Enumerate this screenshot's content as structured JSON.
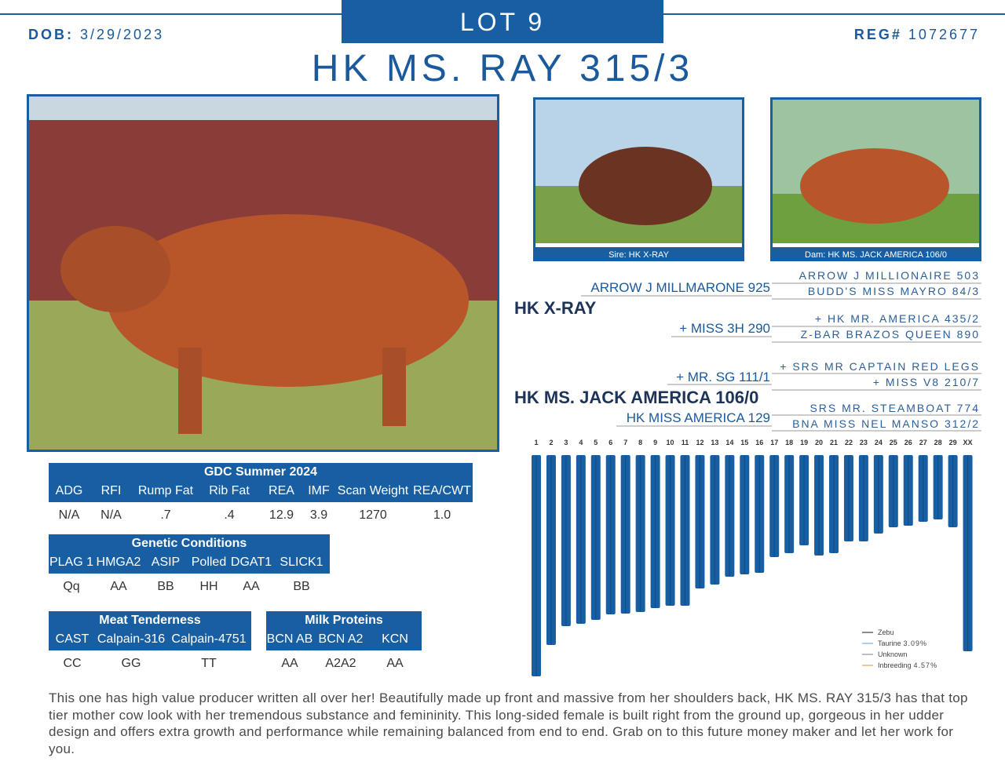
{
  "header": {
    "lot": "LOT 9",
    "dob_label": "DOB:",
    "dob": "3/29/2023",
    "reg_label": "REG#",
    "reg": "1072677",
    "title": "HK MS. RAY 315/3"
  },
  "photos": {
    "sire_caption": "Sire: HK X-RAY",
    "dam_caption": "Dam: HK MS. JACK AMERICA 106/0"
  },
  "pedigree": {
    "sire": "HK X-RAY",
    "sire_sire": "ARROW J MILLMARONE 925",
    "sire_dam": "+ MISS 3H 290",
    "dam": "HK MS. JACK AMERICA 106/0",
    "dam_sire": "+ MR. SG 111/1",
    "dam_dam": "HK MISS AMERICA 129",
    "grandparents": [
      "ARROW J MILLIONAIRE 503",
      "BUDD'S MISS MAYRO 84/3",
      "+ HK MR. AMERICA 435/2",
      "Z-BAR BRAZOS QUEEN 890",
      "+ SRS MR CAPTAIN RED LEGS",
      "+ MISS V8 210/7",
      "SRS MR. STEAMBOAT 774",
      "BNA MISS NEL MANSO 312/2"
    ]
  },
  "tables": [
    {
      "title": "GDC Summer 2024",
      "headers": [
        "ADG",
        "RFI",
        "Rump Fat",
        "Rib Fat",
        "REA",
        "IMF",
        "Scan Weight",
        "REA/CWT"
      ],
      "values": [
        "N/A",
        "N/A",
        ".7",
        ".4",
        "12.9",
        "3.9",
        "1270",
        "1.0"
      ]
    },
    {
      "title": "Genetic Conditions",
      "headers": [
        "PLAG 1",
        "HMGA2",
        "ASIP",
        "Polled",
        "DGAT1",
        "SLICK1"
      ],
      "values": [
        "Qq",
        "AA",
        "BB",
        "HH",
        "AA",
        "BB"
      ]
    },
    {
      "title": "Meat Tenderness",
      "headers": [
        "CAST",
        "Calpain-316",
        "Calpain-4751"
      ],
      "values": [
        "CC",
        "GG",
        "TT"
      ]
    },
    {
      "title": "Milk Proteins",
      "headers": [
        "BCN AB",
        "BCN A2",
        "KCN"
      ],
      "values": [
        "AA",
        "A2A2",
        "AA"
      ]
    }
  ],
  "ancestry": {
    "labels": [
      "1",
      "2",
      "3",
      "4",
      "5",
      "6",
      "7",
      "8",
      "9",
      "10",
      "11",
      "12",
      "13",
      "14",
      "15",
      "16",
      "17",
      "18",
      "19",
      "20",
      "21",
      "22",
      "23",
      "24",
      "25",
      "26",
      "27",
      "28",
      "29",
      "XX"
    ],
    "lengths": [
      282,
      242,
      218,
      215,
      210,
      203,
      202,
      200,
      195,
      192,
      192,
      170,
      165,
      155,
      152,
      150,
      130,
      125,
      115,
      128,
      125,
      110,
      110,
      100,
      92,
      90,
      85,
      82,
      92,
      250
    ],
    "legend": [
      {
        "name": "Zebu",
        "value": ""
      },
      {
        "name": "Taurine",
        "value": "3.09%"
      },
      {
        "name": "Unknown",
        "value": ""
      },
      {
        "name": "Inbreeding",
        "value": "4.57%"
      }
    ]
  },
  "description": "This one has high value producer written all over her! Beautifully made up front and massive from her shoulders back, HK MS. RAY 315/3 has that top tier mother cow look with her tremendous substance and femininity. This long-sided female is built right from the ground up, gorgeous in her udder design and offers extra growth and performance while remaining balanced from end to end. Grab on to this future money maker and let her work for you."
}
